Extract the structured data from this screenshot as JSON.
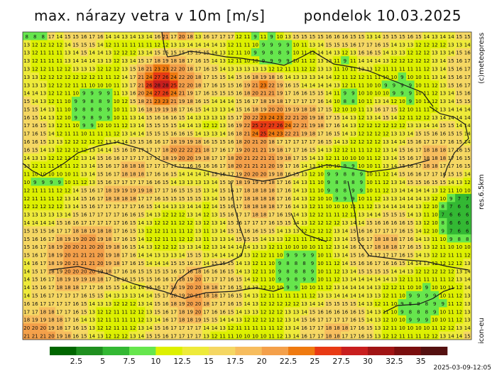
{
  "header": {
    "title": "max. nárazy vetra v 10m [m/s]",
    "date": "pondelok 10.03.2025"
  },
  "side_labels": {
    "credit": "(c)meteopress",
    "resolution": "res.6.5km",
    "model": "icon-eu"
  },
  "footer": {
    "timestamp": "2025-03-09-12:05"
  },
  "legend": {
    "ticks": [
      "2.5",
      "5",
      "7.5",
      "10",
      "12.5",
      "15",
      "17.5",
      "20",
      "22.5",
      "25",
      "27.5",
      "30",
      "32.5",
      "35"
    ],
    "colors": [
      "#006600",
      "#1f8f1f",
      "#33b833",
      "#66e64d",
      "#ddf000",
      "#eeea3a",
      "#f5d763",
      "#f7bd5e",
      "#f4a04a",
      "#ef7a10",
      "#e83a14",
      "#c81e1e",
      "#a01414",
      "#7a0e0e",
      "#541010"
    ]
  },
  "field": {
    "rows": 38,
    "cols": 55,
    "unit": "m/s",
    "sample_row": [
      8,
      8,
      8,
      17,
      14,
      15,
      15,
      16,
      17,
      16,
      14,
      14,
      13,
      14,
      13,
      14,
      16,
      21,
      17,
      20,
      18,
      13,
      16,
      17,
      17,
      17,
      12,
      11,
      9,
      11,
      9,
      10,
      13,
      15,
      15,
      15,
      15,
      16,
      16,
      16,
      15,
      15,
      13,
      14,
      15,
      15,
      15,
      16,
      15,
      14,
      13,
      14,
      14,
      15,
      15
    ]
  }
}
